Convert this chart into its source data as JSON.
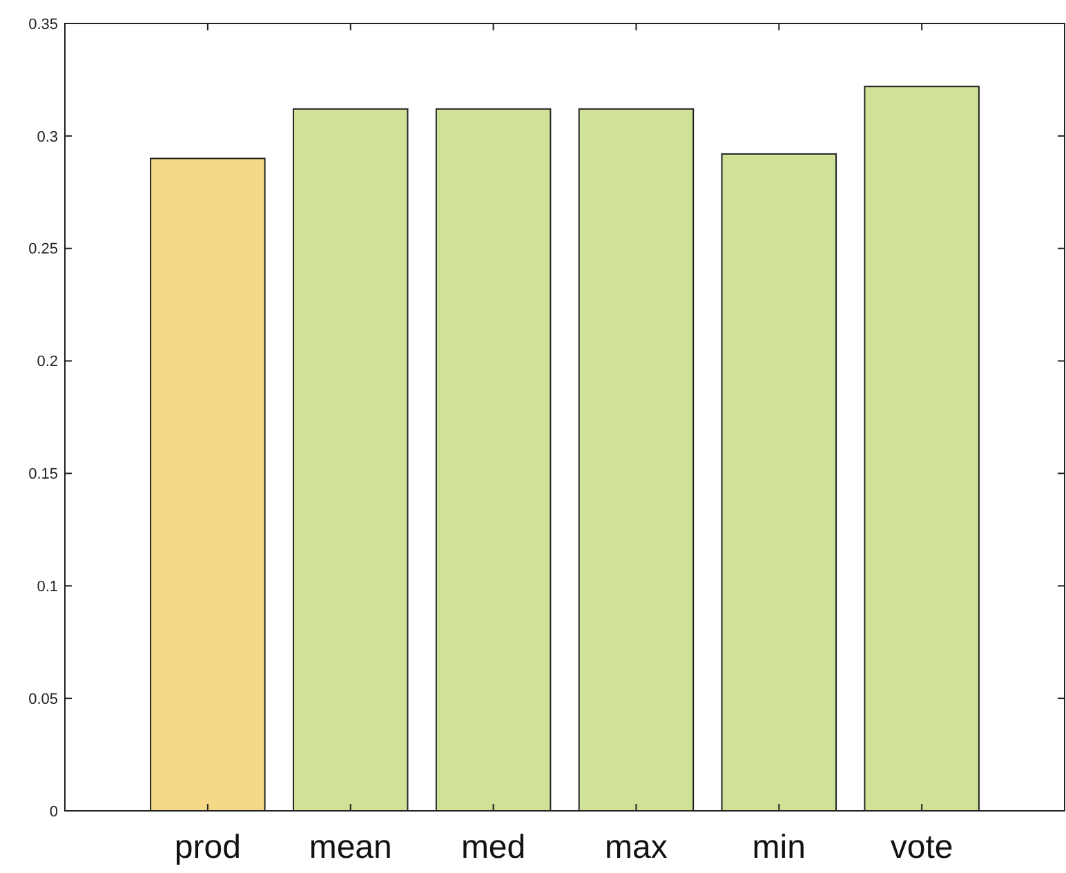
{
  "chart_data": {
    "type": "bar",
    "categories": [
      "prod",
      "mean",
      "med",
      "max",
      "min",
      "vote"
    ],
    "values": [
      0.29,
      0.312,
      0.312,
      0.312,
      0.292,
      0.322
    ],
    "colors": [
      "#f5d988",
      "#cfe298",
      "#cfe298",
      "#cfe298",
      "#cfe298",
      "#cfe298"
    ],
    "ylim": [
      0,
      0.35
    ],
    "yticks": [
      0,
      0.05,
      0.1,
      0.15,
      0.2,
      0.25,
      0.3,
      0.35
    ]
  }
}
